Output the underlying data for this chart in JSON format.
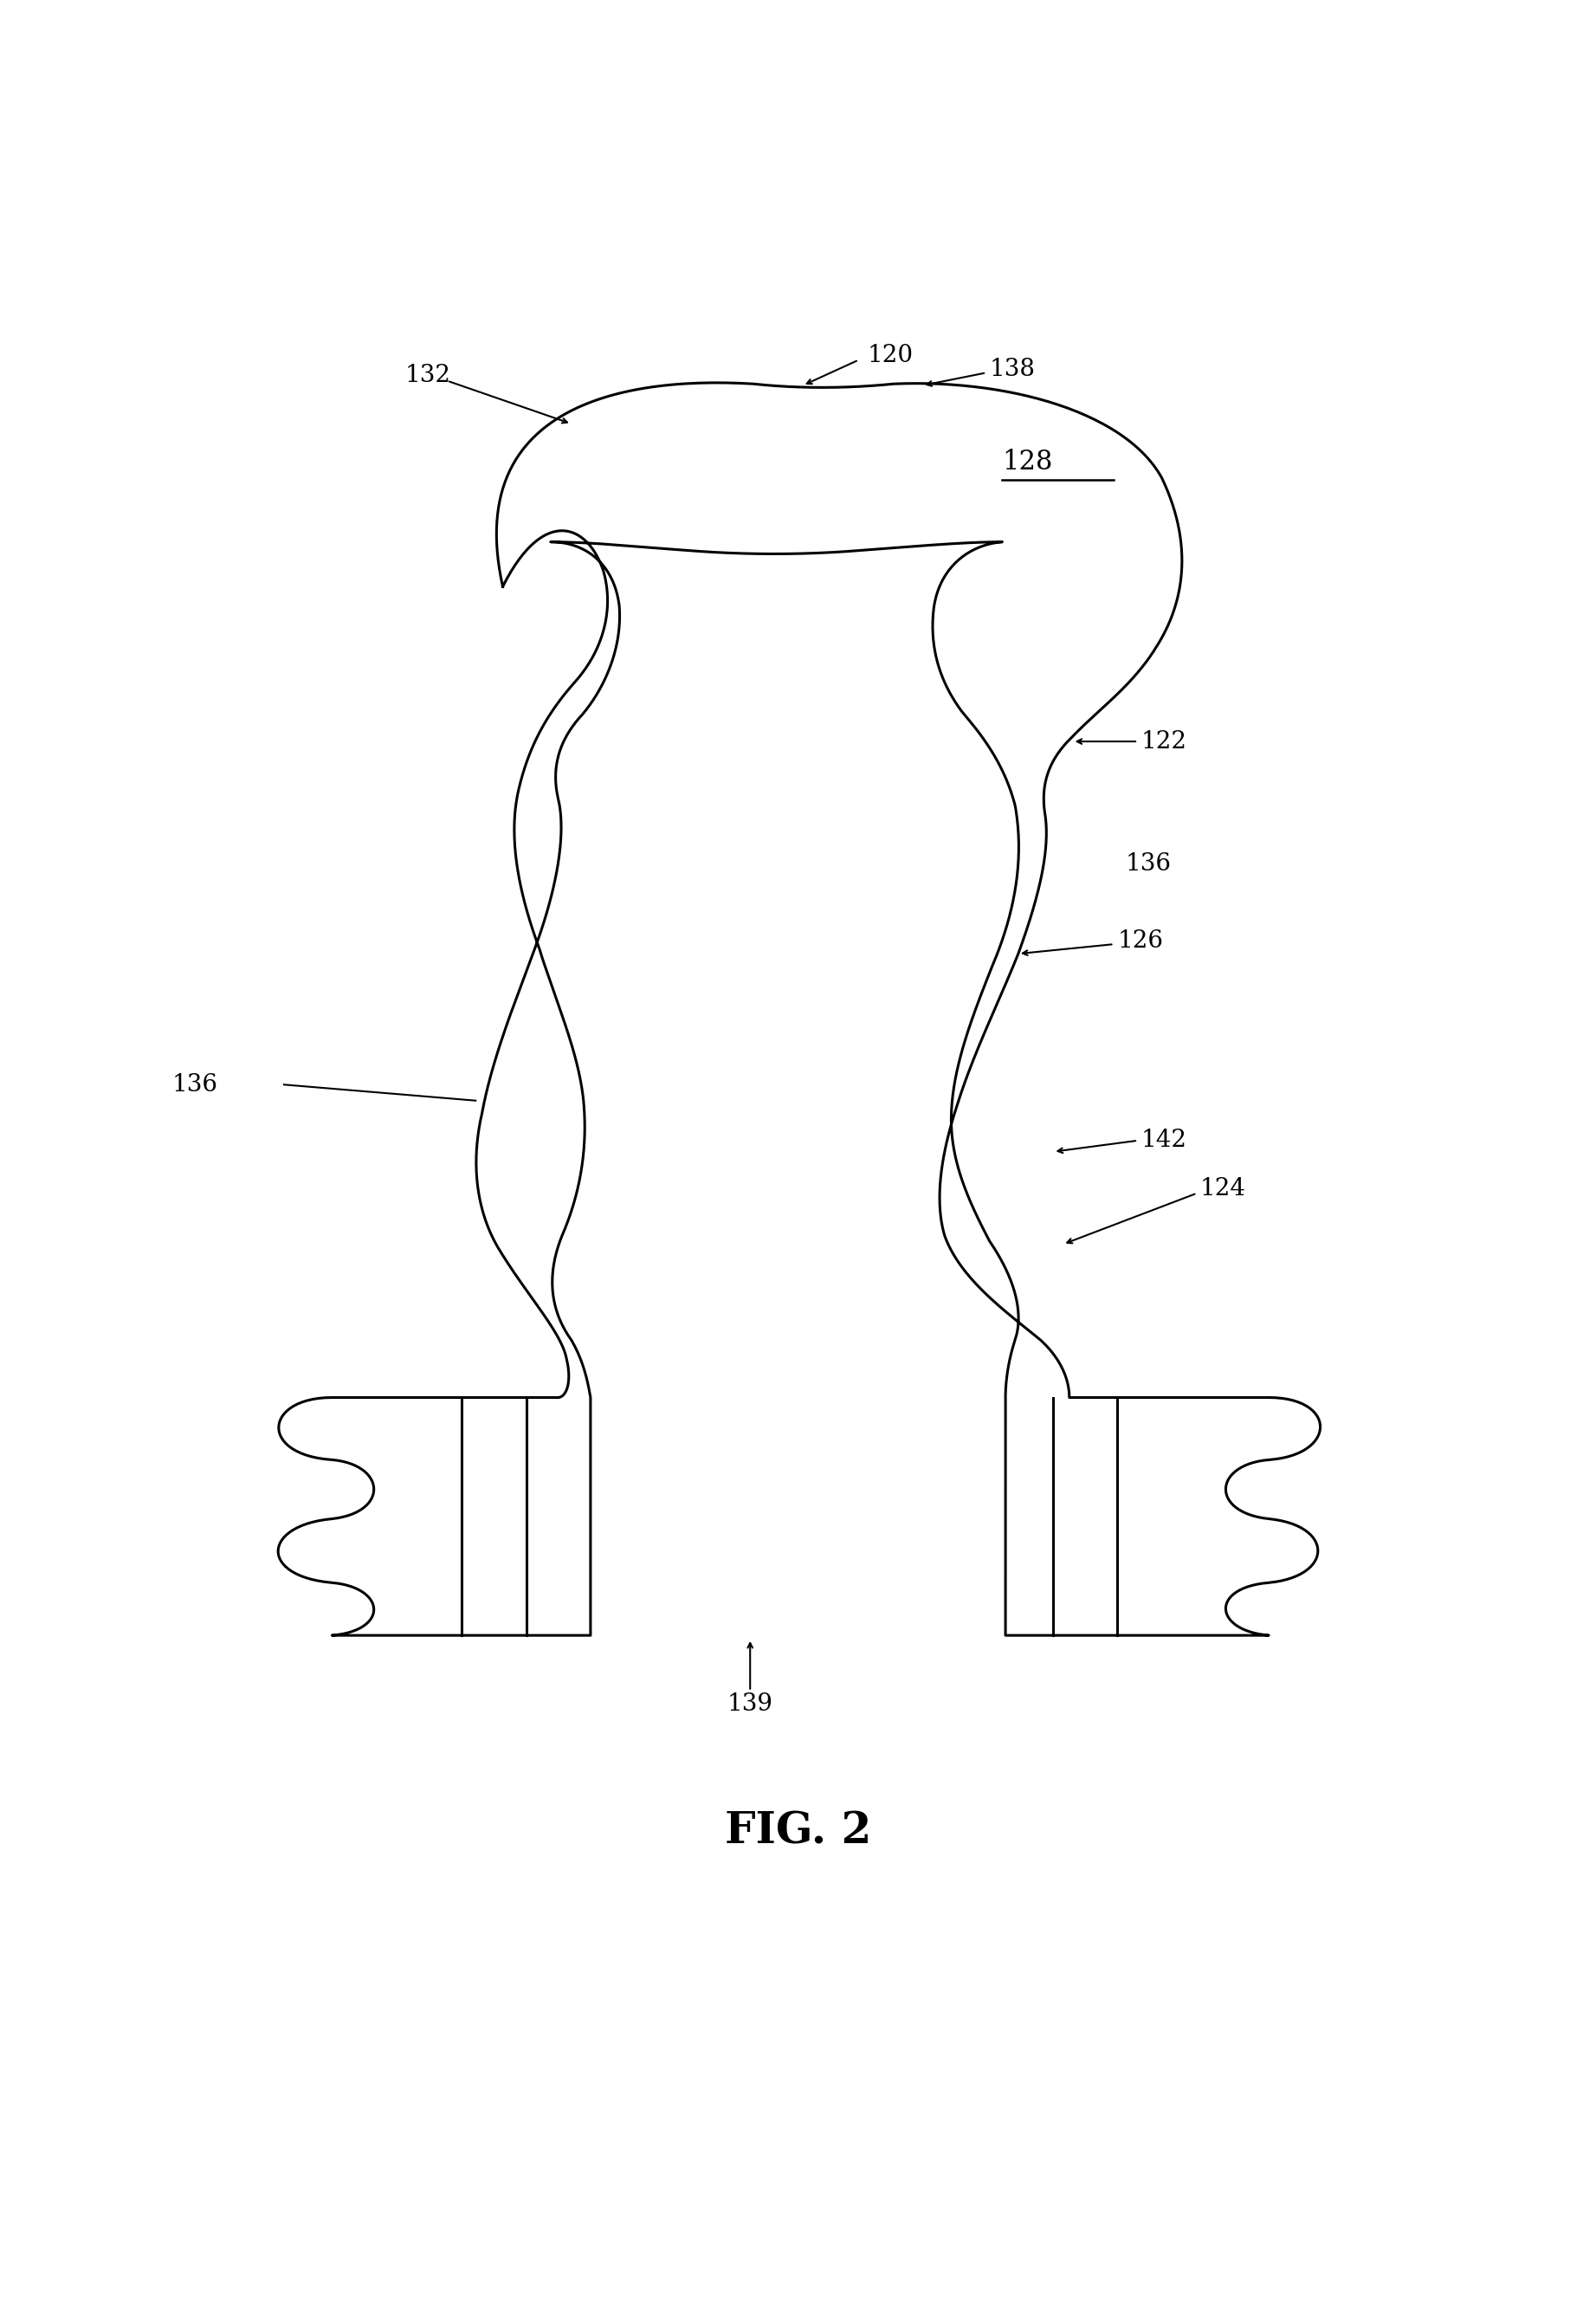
{
  "title": "FIG. 2",
  "title_fontsize": 36,
  "title_fontweight": "bold",
  "bg_color": "#ffffff",
  "line_color": "#000000",
  "line_width": 2.2,
  "fig_width": 18.43,
  "fig_height": 26.52
}
